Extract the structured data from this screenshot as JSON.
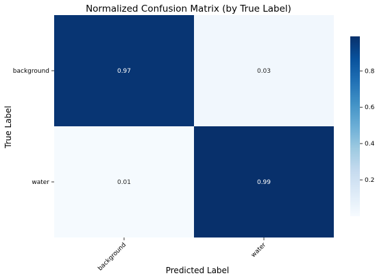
{
  "chart_data": {
    "type": "heatmap",
    "title": "Normalized Confusion Matrix (by True Label)",
    "xlabel": "Predicted Label",
    "ylabel": "True Label",
    "x_categories": [
      "background",
      "water"
    ],
    "y_categories": [
      "background",
      "water"
    ],
    "values": [
      [
        0.97,
        0.03
      ],
      [
        0.01,
        0.99
      ]
    ],
    "value_labels": [
      [
        "0.97",
        "0.03"
      ],
      [
        "0.01",
        "0.99"
      ]
    ],
    "colormap": "Blues",
    "colorbar": {
      "range": [
        0.0,
        0.99
      ],
      "ticks": [
        0.2,
        0.4,
        0.6,
        0.8
      ],
      "tick_labels": [
        "0.2",
        "0.4",
        "0.6",
        "0.8"
      ]
    },
    "colors": {
      "low": "#f7fbff",
      "high": "#08306b"
    },
    "grid": false,
    "legend": "colorbar-right"
  }
}
